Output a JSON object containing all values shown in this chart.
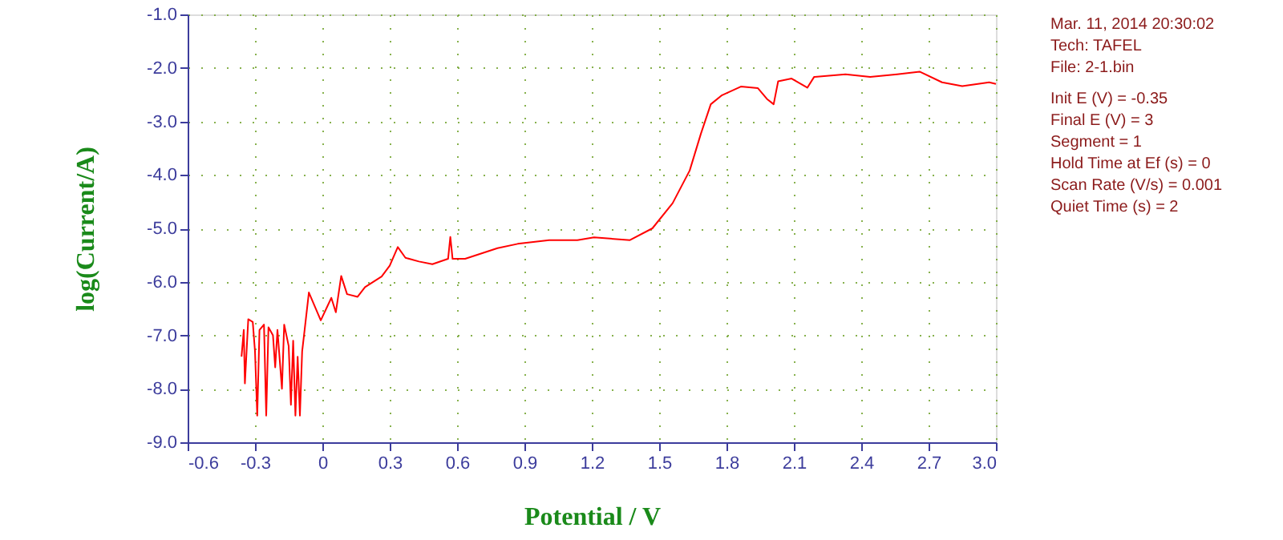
{
  "chart_data": {
    "type": "line",
    "xlabel": "Potential / V",
    "ylabel": "log(Current/A)",
    "annotations": [
      "Mar. 11, 2014   20:30:02",
      "Tech: TAFEL",
      "File: 2-1.bin",
      "Init E (V) = -0.35",
      "Final E (V) = 3",
      "Segment = 1",
      "Hold Time at Ef (s) = 0",
      "Scan Rate (V/s) = 0.001",
      "Quiet Time (s) = 2"
    ],
    "series": [
      {
        "color": "#ff0000",
        "x": [
          -0.36,
          -0.35,
          -0.345,
          -0.33,
          -0.31,
          -0.3,
          -0.29,
          -0.28,
          -0.26,
          -0.25,
          -0.24,
          -0.22,
          -0.21,
          -0.2,
          -0.18,
          -0.17,
          -0.15,
          -0.14,
          -0.13,
          -0.12,
          -0.11,
          -0.1,
          -0.09,
          -0.079,
          -0.06,
          -0.007,
          0.04,
          0.06,
          0.084,
          0.11,
          0.157,
          0.19,
          0.264,
          0.3,
          0.336,
          0.37,
          0.43,
          0.49,
          0.56,
          0.57,
          0.58,
          0.636,
          0.78,
          0.87,
          1.01,
          1.136,
          1.21,
          1.37,
          1.47,
          1.56,
          1.636,
          1.686,
          1.73,
          1.78,
          1.864,
          1.94,
          1.98,
          2.01,
          2.03,
          2.09,
          2.16,
          2.19,
          2.33,
          2.44,
          2.56,
          2.66,
          2.76,
          2.85,
          2.97,
          3.0
        ],
        "values": [
          -7.4,
          -6.9,
          -7.9,
          -6.7,
          -6.75,
          -7.3,
          -8.5,
          -6.9,
          -6.8,
          -8.5,
          -6.85,
          -7.0,
          -7.6,
          -6.9,
          -8.0,
          -6.8,
          -7.2,
          -8.3,
          -7.1,
          -8.5,
          -7.4,
          -8.5,
          -7.3,
          -6.9,
          -6.2,
          -6.72,
          -6.3,
          -6.57,
          -5.89,
          -6.23,
          -6.28,
          -6.1,
          -5.9,
          -5.7,
          -5.35,
          -5.55,
          -5.62,
          -5.67,
          -5.57,
          -5.16,
          -5.57,
          -5.57,
          -5.37,
          -5.29,
          -5.22,
          -5.22,
          -5.17,
          -5.22,
          -5.0,
          -4.53,
          -3.92,
          -3.23,
          -2.68,
          -2.51,
          -2.35,
          -2.38,
          -2.58,
          -2.68,
          -2.25,
          -2.2,
          -2.37,
          -2.17,
          -2.12,
          -2.17,
          -2.12,
          -2.07,
          -2.27,
          -2.34,
          -2.27,
          -2.3
        ]
      }
    ],
    "xlim": [
      -0.6,
      3.0
    ],
    "ylim": [
      -9.0,
      -1.0
    ],
    "xticks": [
      -0.6,
      -0.3,
      0,
      0.3,
      0.6,
      0.9,
      1.2,
      1.5,
      1.8,
      2.1,
      2.4,
      2.7,
      {
        "value": 3.0,
        "label": "3.0"
      }
    ],
    "yticks": [
      {
        "value": -9,
        "label": "-9.0"
      },
      {
        "value": -8,
        "label": "-8.0"
      },
      {
        "value": -7,
        "label": "-7.0"
      },
      {
        "value": -6,
        "label": "-6.0"
      },
      {
        "value": -5,
        "label": "-5.0"
      },
      {
        "value": -4,
        "label": "-4.0"
      },
      {
        "value": -3,
        "label": "-3.0"
      },
      {
        "value": -2,
        "label": "-2.0"
      },
      {
        "value": -1,
        "label": "-1.0"
      }
    ],
    "grid": true,
    "line_style": "solid",
    "marker": "none"
  }
}
